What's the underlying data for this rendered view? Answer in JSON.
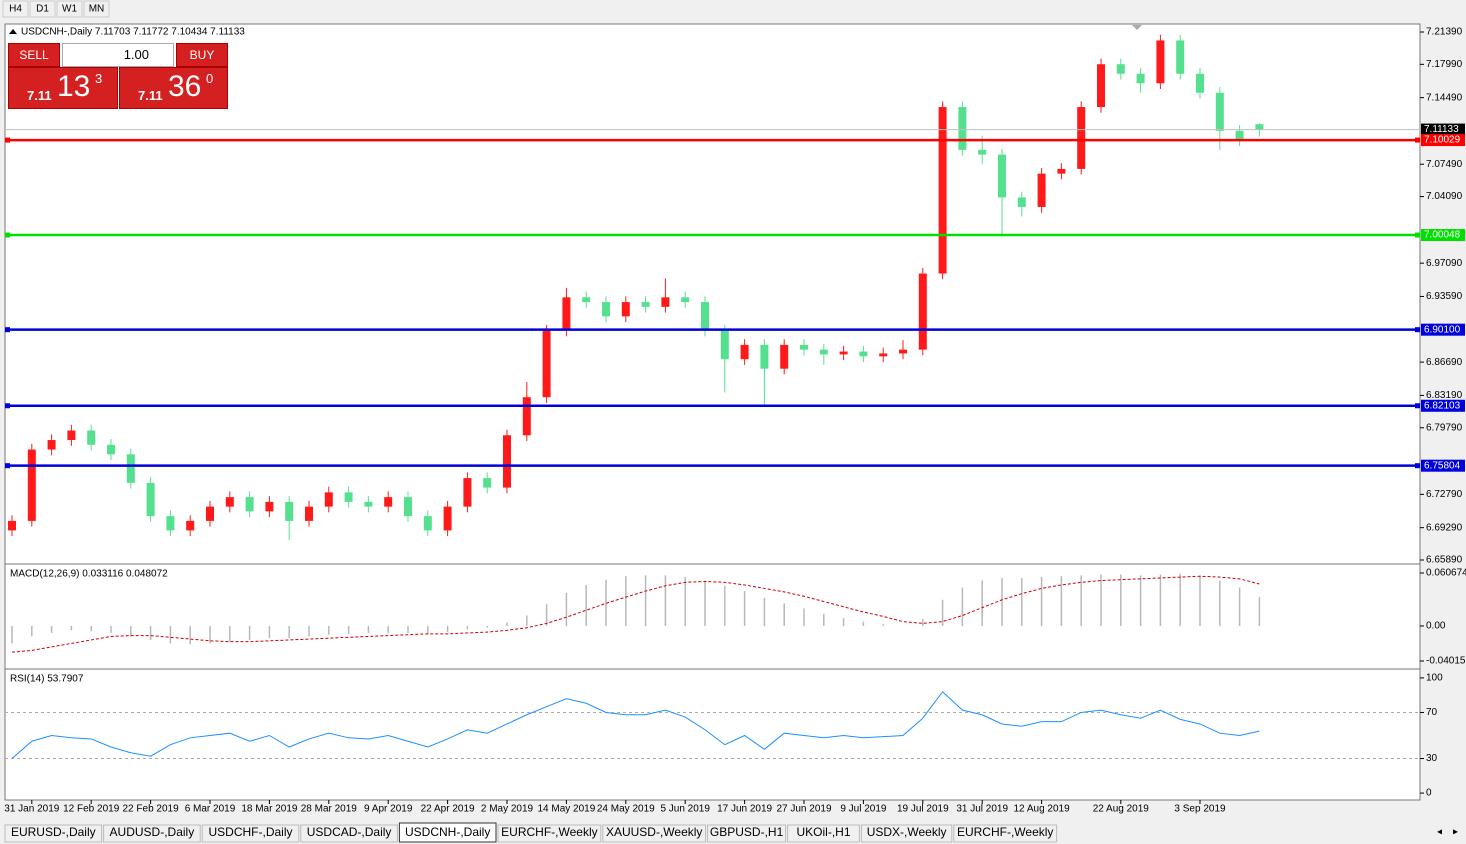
{
  "toolbar": {
    "timeframes": [
      "H4",
      "D1",
      "W1",
      "MN"
    ]
  },
  "trade_panel": {
    "sell_label": "SELL",
    "lot": "1.00",
    "buy_label": "BUY",
    "sell_price": {
      "big": "7.11",
      "digits": "13",
      "small": "3"
    },
    "buy_price": {
      "big": "7.11",
      "digits": "36",
      "small": "0"
    }
  },
  "chart_data": [
    {
      "type": "candlestick",
      "title": "USDCNH-,Daily  7.11703 7.11772 7.10434 7.11133",
      "up_color": "#ff1a1a",
      "down_color": "#55e08f",
      "categories": [
        null,
        "31 Jan 2019",
        null,
        null,
        "12 Feb 2019",
        null,
        null,
        "22 Feb 2019",
        null,
        null,
        "6 Mar 2019",
        null,
        null,
        "18 Mar 2019",
        null,
        null,
        "28 Mar 2019",
        null,
        null,
        "9 Apr 2019",
        null,
        null,
        "22 Apr 2019",
        null,
        null,
        "2 May 2019",
        null,
        null,
        "14 May 2019",
        null,
        null,
        "24 May 2019",
        null,
        null,
        "5 Jun 2019",
        null,
        null,
        "17 Jun 2019",
        null,
        null,
        "27 Jun 2019",
        null,
        null,
        "9 Jul 2019",
        null,
        null,
        "19 Jul 2019",
        null,
        null,
        "31 Jul 2019",
        null,
        null,
        "12 Aug 2019",
        null,
        null,
        null,
        "22 Aug 2019",
        null,
        null,
        null,
        "3 Sep 2019",
        null,
        null,
        null
      ],
      "open": [
        6.69,
        6.7,
        6.775,
        6.785,
        6.795,
        6.78,
        6.77,
        6.74,
        6.705,
        6.69,
        6.7,
        6.715,
        6.725,
        6.71,
        6.72,
        6.7,
        6.715,
        6.73,
        6.72,
        6.715,
        6.725,
        6.705,
        6.69,
        6.715,
        6.745,
        6.735,
        6.79,
        6.83,
        6.9,
        6.935,
        6.93,
        6.915,
        6.93,
        6.925,
        6.935,
        6.93,
        6.9,
        6.87,
        6.885,
        6.86,
        6.885,
        6.88,
        6.875,
        6.878,
        6.873,
        6.876,
        6.88,
        6.96,
        7.135,
        7.09,
        7.085,
        7.04,
        7.03,
        7.065,
        7.07,
        7.135,
        7.18,
        7.17,
        7.16,
        7.205,
        7.17,
        7.15,
        7.11,
        7.117
      ],
      "high": [
        6.706,
        6.781,
        6.791,
        6.801,
        6.801,
        6.786,
        6.776,
        6.746,
        6.711,
        6.706,
        6.721,
        6.731,
        6.731,
        6.726,
        6.726,
        6.721,
        6.736,
        6.736,
        6.726,
        6.731,
        6.731,
        6.711,
        6.721,
        6.751,
        6.751,
        6.796,
        6.846,
        6.906,
        6.945,
        6.941,
        6.936,
        6.936,
        6.936,
        6.955,
        6.941,
        6.936,
        6.906,
        6.891,
        6.891,
        6.891,
        6.891,
        6.886,
        6.884,
        6.884,
        6.882,
        6.89,
        6.966,
        7.141,
        7.141,
        7.105,
        7.091,
        7.046,
        7.071,
        7.076,
        7.141,
        7.186,
        7.186,
        7.176,
        7.211,
        7.211,
        7.176,
        7.156,
        7.116,
        7.118
      ],
      "low": [
        6.684,
        6.694,
        6.769,
        6.779,
        6.774,
        6.764,
        6.734,
        6.699,
        6.684,
        6.684,
        6.694,
        6.709,
        6.704,
        6.704,
        6.68,
        6.694,
        6.709,
        6.714,
        6.709,
        6.709,
        6.699,
        6.684,
        6.684,
        6.709,
        6.729,
        6.729,
        6.784,
        6.824,
        6.894,
        6.924,
        6.909,
        6.909,
        6.919,
        6.919,
        6.924,
        6.894,
        6.835,
        6.864,
        6.821,
        6.854,
        6.874,
        6.864,
        6.869,
        6.867,
        6.867,
        6.87,
        6.874,
        6.954,
        7.084,
        7.075,
        7.0,
        7.02,
        7.024,
        7.059,
        7.064,
        7.129,
        7.164,
        7.15,
        7.154,
        7.164,
        7.144,
        7.09,
        7.094,
        7.104
      ],
      "close": [
        6.7,
        6.775,
        6.785,
        6.795,
        6.78,
        6.77,
        6.74,
        6.705,
        6.69,
        6.7,
        6.715,
        6.725,
        6.71,
        6.72,
        6.7,
        6.715,
        6.73,
        6.72,
        6.715,
        6.725,
        6.705,
        6.69,
        6.715,
        6.745,
        6.735,
        6.79,
        6.83,
        6.9,
        6.935,
        6.93,
        6.915,
        6.93,
        6.925,
        6.935,
        6.93,
        6.9,
        6.87,
        6.885,
        6.86,
        6.885,
        6.88,
        6.875,
        6.878,
        6.873,
        6.876,
        6.88,
        6.96,
        7.135,
        7.09,
        7.085,
        7.04,
        7.03,
        7.065,
        7.07,
        7.135,
        7.18,
        7.17,
        7.16,
        7.205,
        7.17,
        7.15,
        7.11,
        7.1,
        7.111
      ],
      "ylim": [
        6.6568,
        7.2223
      ],
      "yticks": [
        {
          "value": 7.2139,
          "label": "7.21390"
        },
        {
          "value": 7.1799,
          "label": "7.17990"
        },
        {
          "value": 7.1449,
          "label": "7.14490"
        },
        {
          "value": 7.0749,
          "label": "7.07490"
        },
        {
          "value": 7.0409,
          "label": "7.04090"
        },
        {
          "value": 6.9709,
          "label": "6.97090"
        },
        {
          "value": 6.9359,
          "label": "6.93590"
        },
        {
          "value": 6.8669,
          "label": "6.86690"
        },
        {
          "value": 6.8319,
          "label": "6.83190"
        },
        {
          "value": 6.7979,
          "label": "6.79790"
        },
        {
          "value": 6.7279,
          "label": "6.72790"
        },
        {
          "value": 6.6929,
          "label": "6.69290"
        },
        {
          "value": 6.6589,
          "label": "6.65890"
        }
      ],
      "last_price": 7.11133,
      "levels": [
        {
          "value": 7.10029,
          "color": "#ff0000"
        },
        {
          "value": 7.00048,
          "color": "#00e000"
        },
        {
          "value": 6.901,
          "label": "6.90100",
          "color": "#0000dd"
        },
        {
          "value": 6.82103,
          "color": "#0000dd"
        },
        {
          "value": 6.75804,
          "color": "#0000dd"
        }
      ]
    },
    {
      "type": "macd",
      "title": "MACD(12,26,9) 0.033116 0.048072",
      "color": "#b8b8b8",
      "signal_color": "#cc0000",
      "values": [
        -0.02,
        -0.012,
        -0.008,
        -0.005,
        -0.006,
        -0.008,
        -0.012,
        -0.016,
        -0.02,
        -0.021,
        -0.02,
        -0.018,
        -0.016,
        -0.014,
        -0.014,
        -0.012,
        -0.01,
        -0.009,
        -0.008,
        -0.008,
        -0.008,
        -0.009,
        -0.007,
        -0.004,
        -0.002,
        0.004,
        0.012,
        0.025,
        0.038,
        0.047,
        0.053,
        0.057,
        0.058,
        0.058,
        0.056,
        0.052,
        0.046,
        0.04,
        0.032,
        0.026,
        0.02,
        0.014,
        0.009,
        0.005,
        0.002,
        0.0,
        0.008,
        0.03,
        0.044,
        0.052,
        0.055,
        0.055,
        0.056,
        0.057,
        0.058,
        0.059,
        0.059,
        0.058,
        0.059,
        0.06,
        0.058,
        0.052,
        0.044,
        0.033116
      ],
      "signal": [
        -0.03,
        -0.028,
        -0.024,
        -0.02,
        -0.016,
        -0.012,
        -0.011,
        -0.011,
        -0.013,
        -0.015,
        -0.017,
        -0.018,
        -0.018,
        -0.017,
        -0.016,
        -0.015,
        -0.014,
        -0.013,
        -0.012,
        -0.011,
        -0.01,
        -0.009,
        -0.009,
        -0.008,
        -0.007,
        -0.005,
        -0.002,
        0.003,
        0.01,
        0.018,
        0.026,
        0.033,
        0.04,
        0.046,
        0.05,
        0.051,
        0.05,
        0.047,
        0.043,
        0.039,
        0.034,
        0.028,
        0.022,
        0.016,
        0.011,
        0.005,
        0.003,
        0.005,
        0.012,
        0.021,
        0.03,
        0.037,
        0.043,
        0.047,
        0.05,
        0.052,
        0.053,
        0.054,
        0.055,
        0.056,
        0.057,
        0.056,
        0.054,
        0.048072
      ],
      "ylim": [
        -0.047,
        0.0687
      ],
      "yticks": [
        0.060674,
        {
          "value": 0,
          "label": "0.00"
        },
        -0.040152
      ]
    },
    {
      "type": "line",
      "title": "RSI(14) 53.7907",
      "color": "#1e90ff",
      "values": [
        30,
        45,
        50,
        48,
        47,
        40,
        35,
        32,
        42,
        48,
        50,
        52,
        45,
        50,
        40,
        47,
        52,
        48,
        47,
        50,
        45,
        40,
        47,
        55,
        52,
        60,
        68,
        75,
        82,
        78,
        70,
        68,
        68,
        72,
        66,
        55,
        42,
        50,
        38,
        52,
        50,
        48,
        50,
        48,
        49,
        50,
        65,
        88,
        72,
        68,
        60,
        58,
        62,
        62,
        70,
        72,
        68,
        65,
        72,
        64,
        60,
        52,
        50,
        53.7907
      ],
      "ylim": [
        -6,
        106
      ],
      "yticks": [
        100,
        70,
        30,
        0
      ],
      "levels": [
        70,
        30
      ]
    }
  ],
  "tabs": [
    "EURUSD-,Daily",
    "AUDUSD-,Daily",
    "USDCHF-,Daily",
    "USDCAD-,Daily",
    "USDCNH-,Daily",
    "EURCHF-,Weekly",
    "XAUUSD-,Weekly",
    "GBPUSD-,H1",
    "UKOil-,H1",
    "USDX-,Weekly",
    "EURCHF-,Weekly"
  ],
  "active_tab": 4
}
